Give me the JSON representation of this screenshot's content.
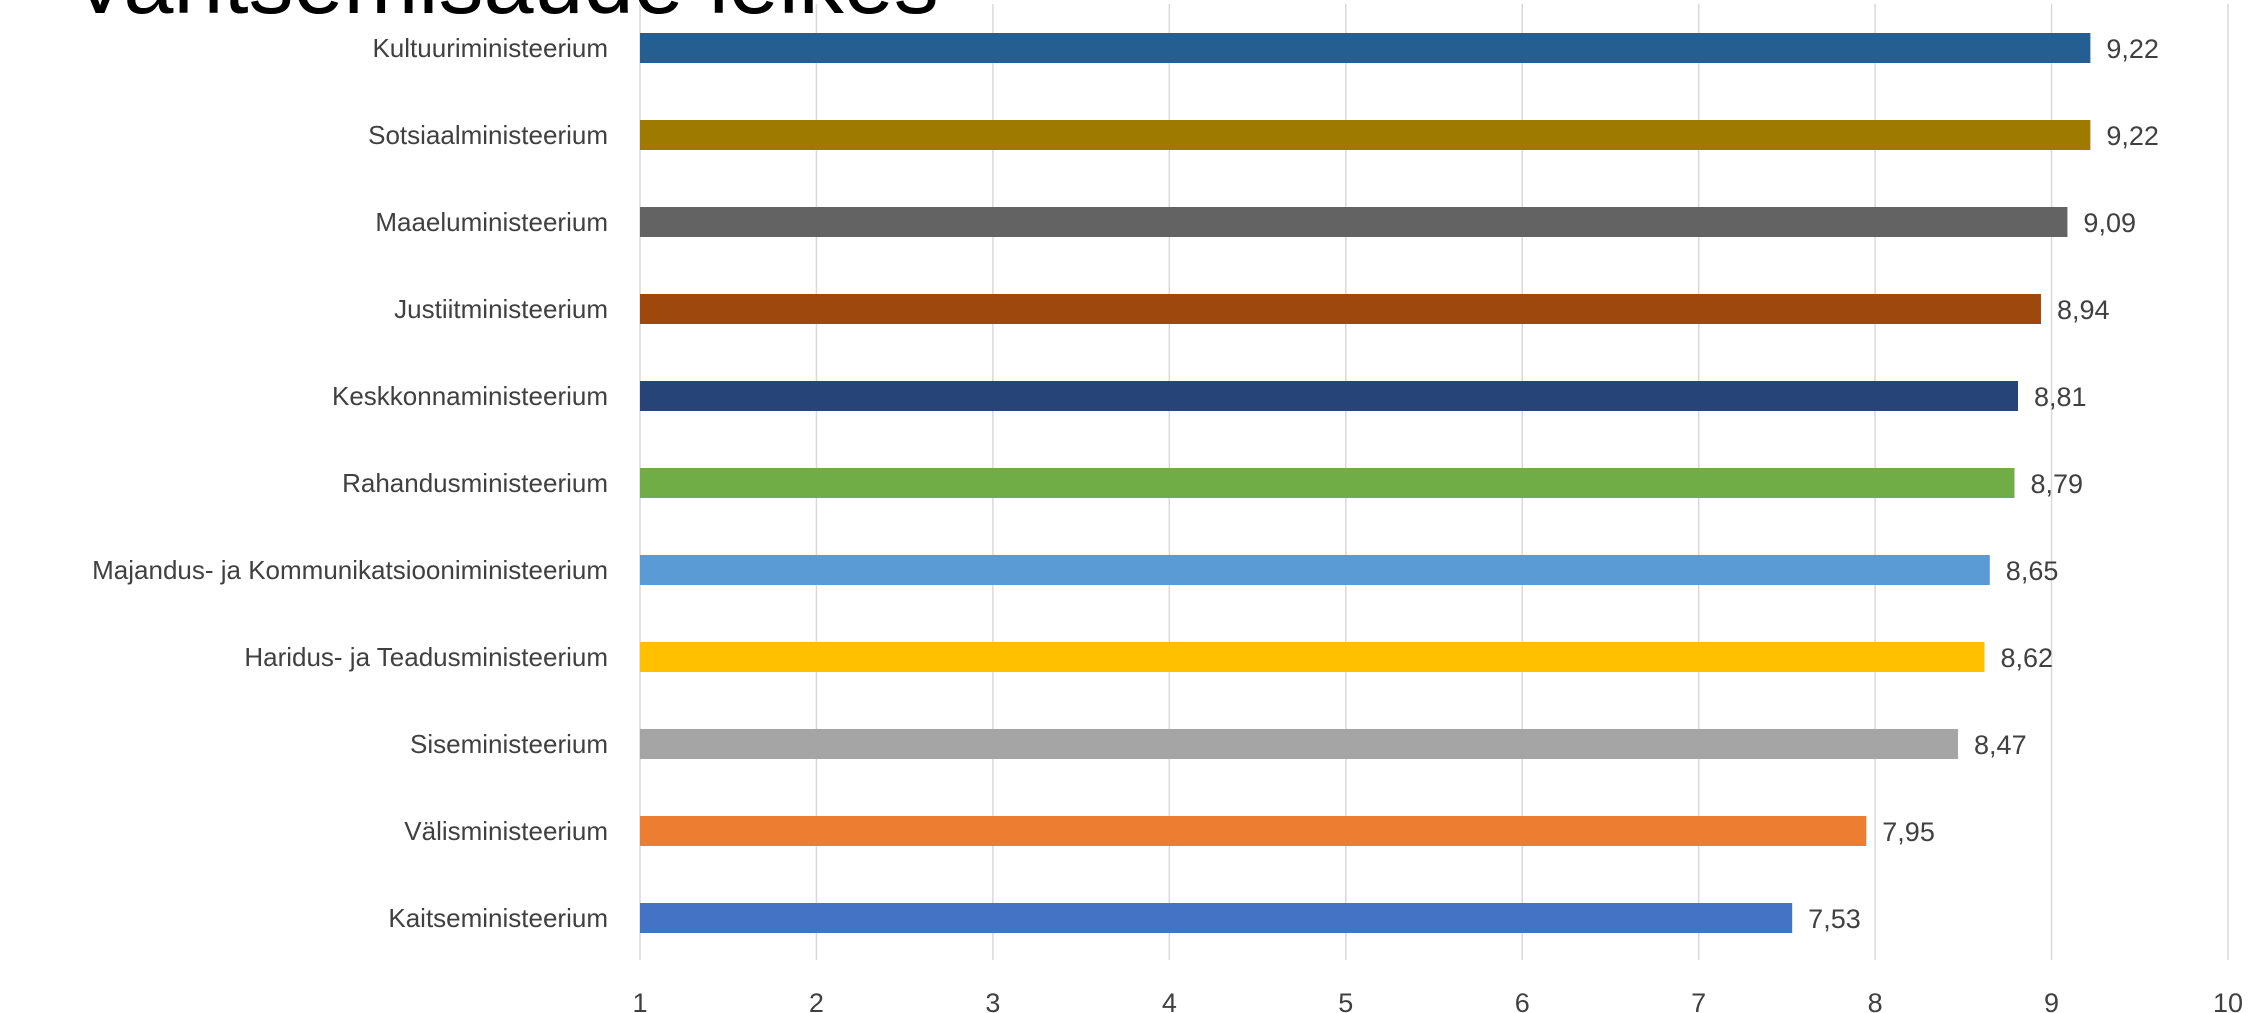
{
  "title": "Vahtsemisaude lelkes",
  "chart_data": {
    "type": "bar",
    "orientation": "horizontal",
    "title": "Vahtsemisaude lelkes",
    "xlabel": "",
    "ylabel": "",
    "xlim": [
      1,
      10
    ],
    "xticks": [
      1,
      2,
      3,
      4,
      5,
      6,
      7,
      8,
      9,
      10
    ],
    "grid": true,
    "legend": "none",
    "categories": [
      "Kultuuriministeerium",
      "Sotsiaalministeerium",
      "Maaeluministeerium",
      "Justiitministeerium",
      "Keskkonnaministeerium",
      "Rahandusministeerium",
      "Majandus- ja Kommunikatsiooniministeerium",
      "Haridus- ja Teadusministeerium",
      "Siseministeerium",
      "Välisministeerium",
      "Kaitseministeerium"
    ],
    "values": [
      9.22,
      9.22,
      9.09,
      8.94,
      8.81,
      8.79,
      8.65,
      8.62,
      8.47,
      7.95,
      7.53
    ],
    "value_labels": [
      "9,22",
      "9,22",
      "9,09",
      "8,94",
      "8,81",
      "8,79",
      "8,65",
      "8,62",
      "8,47",
      "7,95",
      "7,53"
    ],
    "colors": [
      "#255e91",
      "#9e7b00",
      "#636363",
      "#9e480e",
      "#264478",
      "#70ad47",
      "#5b9bd5",
      "#ffc000",
      "#a5a5a5",
      "#ed7d31",
      "#4472c4"
    ]
  }
}
